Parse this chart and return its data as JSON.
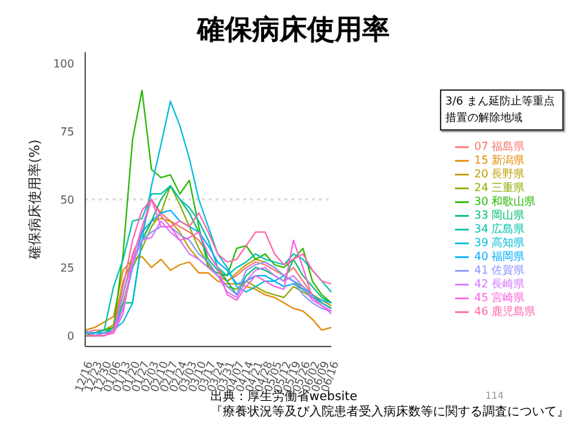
{
  "chart_data": {
    "type": "line",
    "title": "確保病床使用率",
    "ylabel": "確保病床使用率(%)",
    "legend_title": "3/6 まん延防止等重点措置の解除地域",
    "categories": [
      "12/16",
      "12/23",
      "12/30",
      "01/06",
      "01/13",
      "01/20",
      "01/27",
      "02/03",
      "02/10",
      "02/17",
      "02/24",
      "03/03",
      "03/10",
      "03/17",
      "03/24",
      "03/31",
      "04/07",
      "04/14",
      "04/21",
      "04/28",
      "05/05",
      "05/12",
      "05/19",
      "05/26",
      "06/02",
      "06/09",
      "06/16"
    ],
    "ylim": [
      -4,
      104
    ],
    "yticks": [
      0,
      25,
      50,
      75,
      100
    ],
    "grid": false,
    "legend": "right",
    "marker": "none",
    "line_style": "solid",
    "ref_lines": [
      {
        "axis": "y",
        "value": 50,
        "color": "#d9d9d9",
        "line_style": "dotted"
      }
    ],
    "annotations": [
      "出典：厚生労働省website",
      "『療養状況等及び入院患者受入病床数等に関する調査について』",
      "114"
    ],
    "series": [
      {
        "name": "07 福島県",
        "color": "#f8766d",
        "values": [
          1,
          2,
          2,
          3,
          15,
          30,
          38,
          50,
          45,
          42,
          40,
          38,
          35,
          30,
          25,
          20,
          22,
          25,
          27,
          26,
          24,
          22,
          25,
          20,
          15,
          12,
          10
        ]
      },
      {
        "name": "15 新潟県",
        "color": "#e18a00",
        "values": [
          2,
          3,
          5,
          7,
          24,
          28,
          29,
          25,
          28,
          24,
          26,
          27,
          23,
          23,
          20,
          19,
          19,
          18,
          17,
          15,
          14,
          12,
          10,
          9,
          6,
          2,
          3
        ]
      },
      {
        "name": "20 長野県",
        "color": "#be9c00",
        "values": [
          1,
          1,
          2,
          4,
          20,
          28,
          35,
          42,
          43,
          42,
          38,
          32,
          28,
          25,
          22,
          20,
          23,
          26,
          28,
          27,
          25,
          22,
          20,
          17,
          15,
          13,
          11
        ]
      },
      {
        "name": "24 三重県",
        "color": "#8cab00",
        "values": [
          0,
          0,
          1,
          2,
          12,
          25,
          32,
          40,
          45,
          55,
          48,
          40,
          32,
          26,
          22,
          18,
          17,
          20,
          18,
          16,
          15,
          14,
          18,
          16,
          14,
          12,
          10
        ]
      },
      {
        "name": "30 和歌山県",
        "color": "#24b700",
        "values": [
          0,
          1,
          2,
          3,
          30,
          72,
          90,
          61,
          58,
          59,
          52,
          57,
          40,
          25,
          23,
          22,
          32,
          33,
          28,
          30,
          26,
          25,
          28,
          32,
          20,
          15,
          12
        ]
      },
      {
        "name": "33 岡山県",
        "color": "#00be70",
        "values": [
          0,
          0,
          1,
          3,
          12,
          12,
          35,
          42,
          50,
          55,
          50,
          45,
          38,
          28,
          24,
          20,
          15,
          22,
          25,
          24,
          22,
          20,
          28,
          22,
          18,
          14,
          12
        ]
      },
      {
        "name": "34 広島県",
        "color": "#00c1ab",
        "values": [
          1,
          1,
          2,
          18,
          28,
          42,
          43,
          52,
          52,
          55,
          50,
          47,
          42,
          35,
          25,
          22,
          25,
          27,
          30,
          28,
          27,
          26,
          30,
          28,
          24,
          20,
          16
        ]
      },
      {
        "name": "39 高知県",
        "color": "#00bbda",
        "values": [
          0,
          0,
          0,
          2,
          5,
          12,
          35,
          55,
          70,
          86,
          77,
          65,
          50,
          40,
          30,
          25,
          18,
          16,
          18,
          20,
          20,
          22,
          20,
          18,
          15,
          12,
          10
        ]
      },
      {
        "name": "40 福岡県",
        "color": "#00acfc",
        "values": [
          1,
          1,
          1,
          2,
          10,
          25,
          38,
          42,
          45,
          46,
          42,
          40,
          38,
          33,
          27,
          24,
          19,
          20,
          22,
          22,
          20,
          18,
          19,
          17,
          14,
          13,
          12
        ]
      },
      {
        "name": "41 佐賀県",
        "color": "#8b93ff",
        "values": [
          2,
          0,
          1,
          1,
          15,
          28,
          35,
          38,
          40,
          40,
          37,
          35,
          30,
          27,
          22,
          18,
          15,
          24,
          26,
          27,
          25,
          22,
          20,
          15,
          12,
          10,
          9
        ]
      },
      {
        "name": "42 長崎県",
        "color": "#d575fe",
        "values": [
          0,
          0,
          0,
          1,
          10,
          26,
          35,
          36,
          42,
          38,
          35,
          30,
          28,
          25,
          22,
          16,
          14,
          20,
          24,
          25,
          22,
          20,
          22,
          18,
          13,
          11,
          8
        ]
      },
      {
        "name": "45 宮崎県",
        "color": "#f962dd",
        "values": [
          0,
          0,
          0,
          1,
          8,
          28,
          40,
          50,
          40,
          40,
          35,
          36,
          38,
          30,
          25,
          15,
          13,
          18,
          22,
          20,
          18,
          17,
          35,
          25,
          14,
          11,
          9
        ]
      },
      {
        "name": "46 鹿児島県",
        "color": "#ff65ac",
        "values": [
          0,
          0,
          0,
          2,
          18,
          35,
          46,
          50,
          44,
          40,
          42,
          40,
          45,
          38,
          30,
          27,
          28,
          33,
          38,
          38,
          30,
          26,
          28,
          30,
          24,
          20,
          19
        ]
      }
    ]
  }
}
